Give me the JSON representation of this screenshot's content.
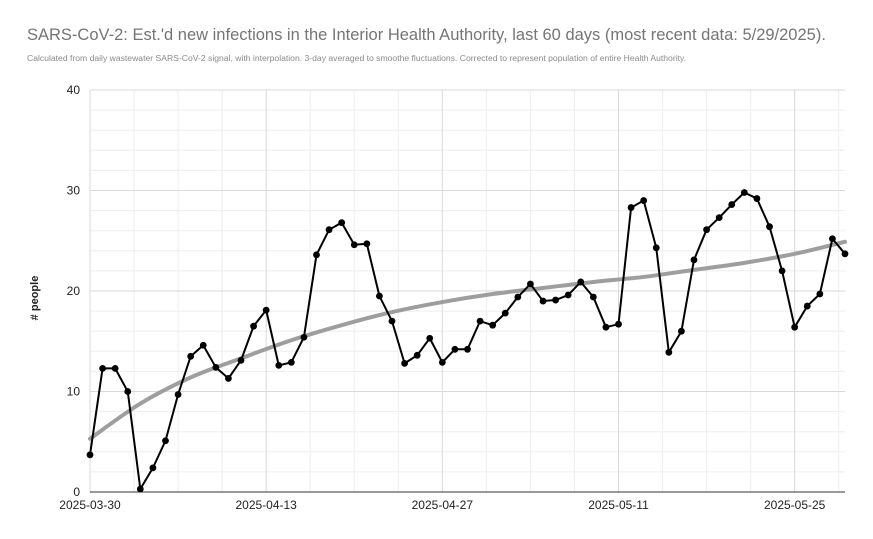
{
  "chart_data": {
    "type": "line",
    "title": "SARS-CoV-2: Est.'d new infections in the Interior Health Authority, last 60 days (most recent data: 5/29/2025).",
    "subtitle": "Calculated from daily wastewater SARS-CoV-2 signal, with interpolation. 3-day averaged to smoothe fluctuations. Corrected to represent population of entire Health Authority.",
    "xlabel": "",
    "ylabel": "# people",
    "ylim": [
      0,
      40
    ],
    "xlim": [
      "2025-03-30",
      "2025-05-29"
    ],
    "y_ticks": [
      "0",
      "10",
      "20",
      "30",
      "40"
    ],
    "x_ticks": [
      "2025-03-30",
      "2025-04-13",
      "2025-04-27",
      "2025-05-11",
      "2025-05-25"
    ],
    "grid": "on",
    "legend": "none",
    "colors": {
      "series": "#000000",
      "trend": "#9e9e9e",
      "grid": "#d9d9d9",
      "minor_grid": "#eeeeee"
    },
    "series": [
      {
        "x": [
          "2025-03-30",
          "2025-03-31",
          "2025-04-01",
          "2025-04-02",
          "2025-04-03",
          "2025-04-04",
          "2025-04-05",
          "2025-04-06",
          "2025-04-07",
          "2025-04-08",
          "2025-04-09",
          "2025-04-10",
          "2025-04-11",
          "2025-04-12",
          "2025-04-13",
          "2025-04-14",
          "2025-04-15",
          "2025-04-16",
          "2025-04-17",
          "2025-04-18",
          "2025-04-19",
          "2025-04-20",
          "2025-04-21",
          "2025-04-22",
          "2025-04-23",
          "2025-04-24",
          "2025-04-25",
          "2025-04-26",
          "2025-04-27",
          "2025-04-28",
          "2025-04-29",
          "2025-04-30",
          "2025-05-01",
          "2025-05-02",
          "2025-05-03",
          "2025-05-04",
          "2025-05-05",
          "2025-05-06",
          "2025-05-07",
          "2025-05-08",
          "2025-05-09",
          "2025-05-10",
          "2025-05-11",
          "2025-05-12",
          "2025-05-13",
          "2025-05-14",
          "2025-05-15",
          "2025-05-16",
          "2025-05-17",
          "2025-05-18",
          "2025-05-19",
          "2025-05-20",
          "2025-05-21",
          "2025-05-22",
          "2025-05-23",
          "2025-05-24",
          "2025-05-25",
          "2025-05-26",
          "2025-05-27",
          "2025-05-28",
          "2025-05-29"
        ],
        "values": [
          3.7,
          12.3,
          12.3,
          10.0,
          0.3,
          2.4,
          5.1,
          9.7,
          13.5,
          14.6,
          12.4,
          11.3,
          13.1,
          16.5,
          18.1,
          12.6,
          12.9,
          15.4,
          23.6,
          26.1,
          26.8,
          24.6,
          24.7,
          19.5,
          17.0,
          12.8,
          13.6,
          15.3,
          12.9,
          14.2,
          14.2,
          17.0,
          16.6,
          17.8,
          19.4,
          20.7,
          19.0,
          19.1,
          19.6,
          20.9,
          19.4,
          16.4,
          16.7,
          28.3,
          29.0,
          24.3,
          13.9,
          16.0,
          23.1,
          26.1,
          27.3,
          28.6,
          29.8,
          29.2,
          26.4,
          22.0,
          16.4,
          18.5,
          19.7,
          25.2,
          23.7
        ]
      },
      {
        "type": "trendline",
        "x": [
          "2025-03-30",
          "2025-04-03",
          "2025-04-07",
          "2025-04-11",
          "2025-04-15",
          "2025-04-19",
          "2025-04-23",
          "2025-04-27",
          "2025-05-01",
          "2025-05-05",
          "2025-05-09",
          "2025-05-13",
          "2025-05-17",
          "2025-05-21",
          "2025-05-25",
          "2025-05-29"
        ],
        "values": [
          5.3,
          8.8,
          11.4,
          13.3,
          15.1,
          16.6,
          17.9,
          18.9,
          19.7,
          20.3,
          20.9,
          21.4,
          22.1,
          22.8,
          23.7,
          24.9
        ]
      }
    ]
  }
}
